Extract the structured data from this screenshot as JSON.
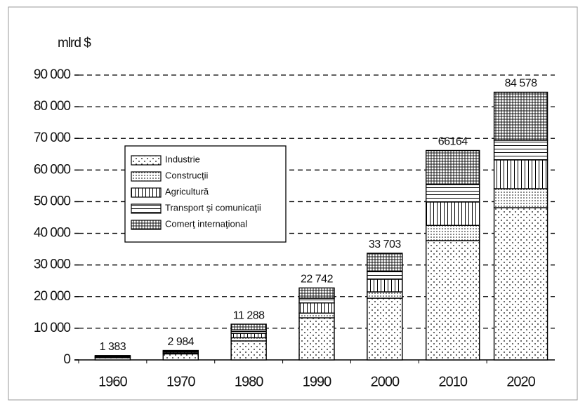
{
  "chart_data": {
    "type": "stacked_bar",
    "y_label": "mlrd $",
    "categories": [
      "1960",
      "1970",
      "1980",
      "1990",
      "2000",
      "2010",
      "2020"
    ],
    "series": [
      {
        "name": "Industrie",
        "color": "#000000",
        "pattern": "sparse-dots",
        "values": [
          700,
          1900,
          6000,
          13300,
          19500,
          37700,
          48100
        ]
      },
      {
        "name": "Construcţii",
        "color": "#000000",
        "pattern": "dense-dots",
        "values": [
          100,
          200,
          1000,
          1500,
          2000,
          4800,
          6000
        ]
      },
      {
        "name": "Agricultură",
        "color": "#000000",
        "pattern": "vertical-lines",
        "values": [
          250,
          350,
          1400,
          3200,
          4000,
          7400,
          9100
        ]
      },
      {
        "name": "Transport şi comunicaţii",
        "color": "#000000",
        "pattern": "horizontal-lines",
        "values": [
          150,
          250,
          1100,
          1500,
          2500,
          5500,
          6200
        ]
      },
      {
        "name": "Comerţ internaţional",
        "color": "#000000",
        "pattern": "grid",
        "values": [
          183,
          284,
          1788,
          3242,
          5703,
          10764,
          15178
        ]
      }
    ],
    "annotations": [
      {
        "value": 1383,
        "label": "1 383"
      },
      {
        "value": 2984,
        "label": "2 984"
      },
      {
        "value": 11288,
        "label": "11 288"
      },
      {
        "value": 22742,
        "label": "22 742"
      },
      {
        "value": 33703,
        "label": "33 703"
      },
      {
        "value": 66164,
        "label": "66164"
      },
      {
        "value": 84578,
        "label": "84 578"
      }
    ],
    "ylim": [
      0,
      90000
    ],
    "yticks": [
      {
        "value": 0,
        "label": "0"
      },
      {
        "value": 10000,
        "label": "10 000"
      },
      {
        "value": 20000,
        "label": "20 000"
      },
      {
        "value": 30000,
        "label": "30 000"
      },
      {
        "value": 40000,
        "label": "40 000"
      },
      {
        "value": 50000,
        "label": "50 000"
      },
      {
        "value": 60000,
        "label": "60 000"
      },
      {
        "value": 70000,
        "label": "70 000"
      },
      {
        "value": 80000,
        "label": "80 000"
      },
      {
        "value": 90000,
        "label": "90 000"
      }
    ],
    "grid": true,
    "legend": "upper left"
  }
}
